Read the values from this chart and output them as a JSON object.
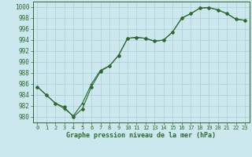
{
  "background_color": "#cce8ee",
  "grid_color": "#aacdd8",
  "line_color": "#2d6a2d",
  "marker_color": "#2d6a2d",
  "xlabel": "Graphe pression niveau de la mer (hPa)",
  "xlim": [
    -0.5,
    23.5
  ],
  "ylim": [
    979,
    1001
  ],
  "yticks": [
    980,
    982,
    984,
    986,
    988,
    990,
    992,
    994,
    996,
    998,
    1000
  ],
  "xticks": [
    0,
    1,
    2,
    3,
    4,
    5,
    6,
    7,
    8,
    9,
    10,
    11,
    12,
    13,
    14,
    15,
    16,
    17,
    18,
    19,
    20,
    21,
    22,
    23
  ],
  "line1_x": [
    0,
    1,
    2,
    3,
    4,
    5,
    6,
    7,
    8,
    9,
    10,
    11,
    12,
    13,
    14,
    15,
    16,
    17,
    18,
    19,
    20,
    21,
    22,
    23
  ],
  "line1_y": [
    985.5,
    984.0,
    982.5,
    981.5,
    980.2,
    982.5,
    986.0,
    988.5,
    989.3,
    991.2,
    994.3,
    994.5,
    994.3,
    993.8,
    994.0,
    995.5,
    998.0,
    998.8,
    999.8,
    999.9,
    999.5,
    998.8,
    997.8,
    997.6
  ],
  "line2_x": [
    0,
    1,
    2,
    3,
    4,
    5,
    6,
    7,
    8,
    9,
    10,
    11,
    12,
    13,
    14,
    15,
    16,
    17,
    18,
    19,
    20,
    21,
    22,
    23
  ],
  "line2_y": [
    985.5,
    984.0,
    982.5,
    981.8,
    980.2,
    981.5,
    985.0,
    988.0,
    989.3,
    991.2,
    994.3,
    994.5,
    994.3,
    993.8,
    994.0,
    995.5,
    998.0,
    998.8,
    999.8,
    999.9,
    999.5,
    998.8,
    997.8,
    997.6
  ]
}
